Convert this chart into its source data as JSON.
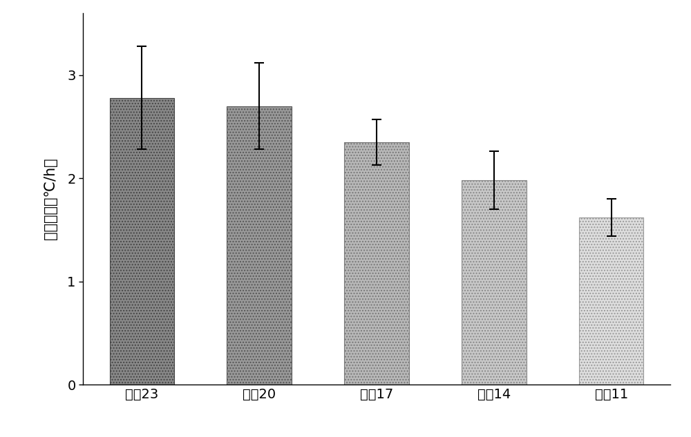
{
  "categories": [
    "导管23",
    "导管20",
    "导管17",
    "导管14",
    "导管11"
  ],
  "values": [
    2.78,
    2.7,
    2.35,
    1.98,
    1.62
  ],
  "errors": [
    0.5,
    0.42,
    0.22,
    0.28,
    0.18
  ],
  "ylabel": "降温速率（℃/h）",
  "ylim": [
    0,
    3.6
  ],
  "yticks": [
    0,
    1,
    2,
    3
  ],
  "background_color": "#ffffff",
  "bar_width": 0.55,
  "figsize": [
    10.0,
    6.33
  ],
  "dpi": 100,
  "bar_face_colors": [
    "#888888",
    "#999999",
    "#b8b8b8",
    "#c8c8c8",
    "#dedede"
  ],
  "bar_edge_colors": [
    "#444444",
    "#555555",
    "#777777",
    "#888888",
    "#999999"
  ],
  "hatch_patterns": [
    "....",
    "....",
    "....",
    "....",
    "...."
  ],
  "hatch_colors": [
    "#bbbbbb",
    "#bbbbbb",
    "#d8d8d8",
    "#dddddd",
    "#eeeeee"
  ],
  "capsize": 5,
  "elinewidth": 1.5,
  "capthick": 1.5,
  "ylabel_fontsize": 15,
  "tick_fontsize": 14
}
